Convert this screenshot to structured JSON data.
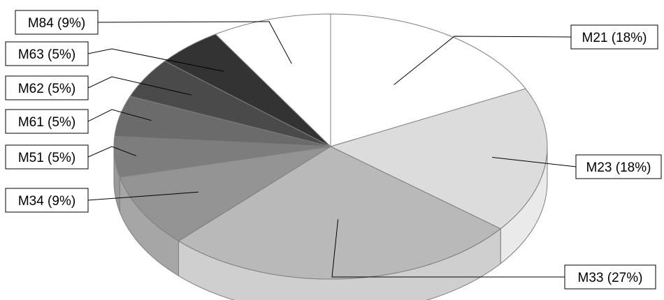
{
  "chart_data": {
    "type": "pie",
    "style": "3d",
    "title": "",
    "slices": [
      {
        "label": "M21 (18%)",
        "name": "M21",
        "value": 18,
        "color": "#ffffff",
        "side_color": "#efefef"
      },
      {
        "label": "M23 (18%)",
        "name": "M23",
        "value": 18,
        "color": "#dcdcdc",
        "side_color": "#eaeaea"
      },
      {
        "label": "M33 (27%)",
        "name": "M33",
        "value": 27,
        "color": "#b9b9b9",
        "side_color": "#cfcfcf"
      },
      {
        "label": "M34 (9%)",
        "name": "M34",
        "value": 9,
        "color": "#949494",
        "side_color": "#a6a6a6"
      },
      {
        "label": "M51 (5%)",
        "name": "M51",
        "value": 5,
        "color": "#7d7d7d",
        "side_color": "#9a9a9a"
      },
      {
        "label": "M61 (5%)",
        "name": "M61",
        "value": 5,
        "color": "#6b6b6b",
        "side_color": "#888888"
      },
      {
        "label": "M62 (5%)",
        "name": "M62",
        "value": 5,
        "color": "#4a4a4a",
        "side_color": "#666666"
      },
      {
        "label": "M63 (5%)",
        "name": "M63",
        "value": 5,
        "color": "#333333",
        "side_color": "#555555"
      },
      {
        "label": "M84 (9%)",
        "name": "M84",
        "value": 9,
        "color": "#ffffff",
        "side_color": "#f0f0f0"
      }
    ],
    "legend": "none"
  }
}
